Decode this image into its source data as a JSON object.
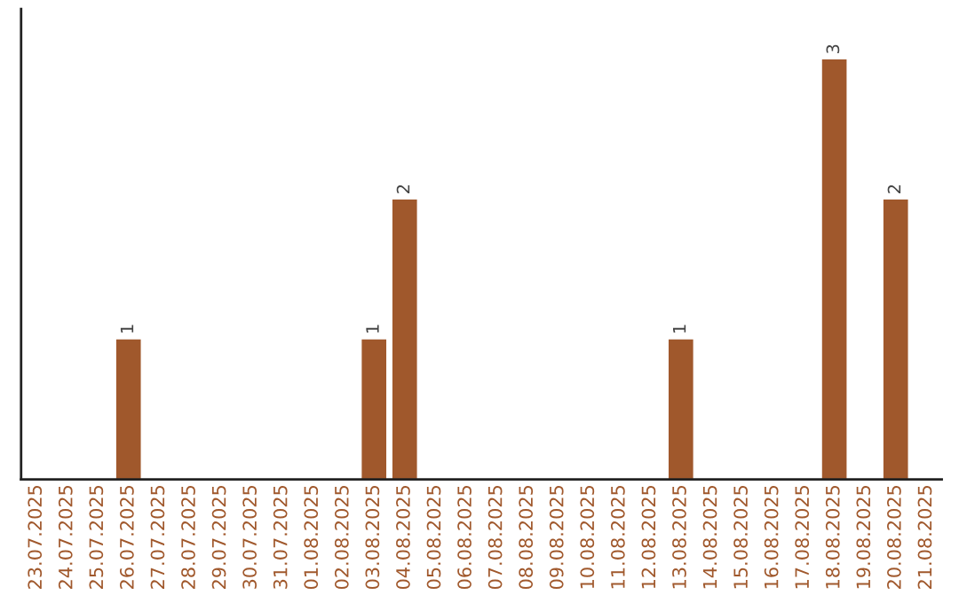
{
  "chart_data": {
    "type": "bar",
    "categories": [
      "23.07.2025",
      "24.07.2025",
      "25.07.2025",
      "26.07.2025",
      "27.07.2025",
      "28.07.2025",
      "29.07.2025",
      "30.07.2025",
      "31.07.2025",
      "01.08.2025",
      "02.08.2025",
      "03.08.2025",
      "04.08.2025",
      "05.08.2025",
      "06.08.2025",
      "07.08.2025",
      "08.08.2025",
      "09.08.2025",
      "10.08.2025",
      "11.08.2025",
      "12.08.2025",
      "13.08.2025",
      "14.08.2025",
      "15.08.2025",
      "16.08.2025",
      "17.08.2025",
      "18.08.2025",
      "19.08.2025",
      "20.08.2025",
      "21.08.2025"
    ],
    "values": [
      0,
      0,
      0,
      1,
      0,
      0,
      0,
      0,
      0,
      0,
      0,
      1,
      2,
      0,
      0,
      0,
      0,
      0,
      0,
      0,
      0,
      1,
      0,
      0,
      0,
      0,
      3,
      0,
      2,
      0
    ],
    "color": "#a0582c",
    "value_labels": [
      null,
      null,
      null,
      "1",
      null,
      null,
      null,
      null,
      null,
      null,
      null,
      "1",
      "2",
      null,
      null,
      null,
      null,
      null,
      null,
      null,
      null,
      "1",
      null,
      null,
      null,
      null,
      "3",
      null,
      "2",
      null
    ],
    "tick_labels": "x",
    "grid": false,
    "legend": false
  }
}
